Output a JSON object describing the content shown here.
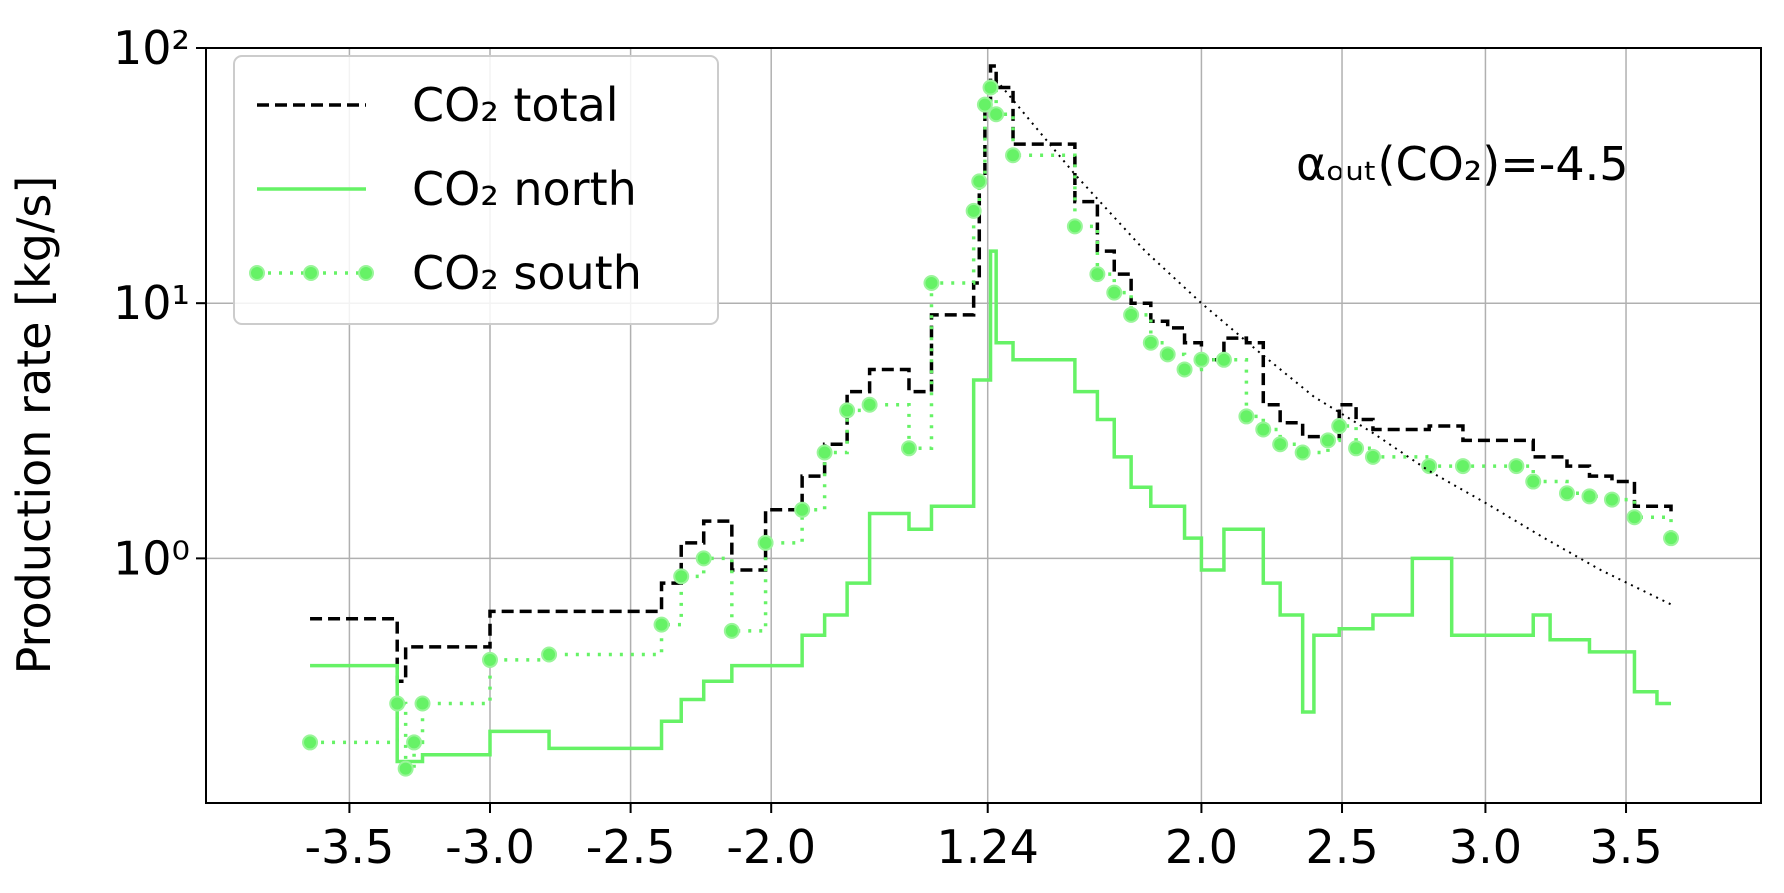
{
  "chart_data": {
    "type": "step",
    "ylabel": "Production rate [kg/s]",
    "annotation": "αₒᵤₜ(CO₂)=-4.5",
    "yscale": "log",
    "grid": true,
    "legend": "upper left",
    "xlim": [
      -4.01,
      1.52
    ],
    "ylim": [
      0.11,
      100
    ],
    "xticks": [
      {
        "value": -3.5,
        "label": "-3.5"
      },
      {
        "value": -3.0,
        "label": "-3.0"
      },
      {
        "value": -2.5,
        "label": "-2.5"
      },
      {
        "value": -2.0,
        "label": "-2.0"
      },
      {
        "value": -1.23,
        "label": "1.24"
      },
      {
        "value": -0.47,
        "label": "2.0"
      },
      {
        "value": 0.03,
        "label": "2.5"
      },
      {
        "value": 0.54,
        "label": "3.0"
      },
      {
        "value": 1.04,
        "label": "3.5"
      }
    ],
    "yticks": [
      {
        "value": 1,
        "label": "10⁰"
      },
      {
        "value": 10,
        "label": "10¹"
      },
      {
        "value": 100,
        "label": "10²"
      }
    ],
    "series": [
      {
        "name": "CO₂ total",
        "color": "#000000",
        "style": "dashed",
        "x": [
          -3.64,
          -3.33,
          -3.3,
          -3.0,
          -2.39,
          -2.32,
          -2.24,
          -2.14,
          -2.02,
          -1.89,
          -1.81,
          -1.73,
          -1.65,
          -1.51,
          -1.43,
          -1.28,
          -1.26,
          -1.24,
          -1.22,
          -1.2,
          -1.14,
          -0.92,
          -0.84,
          -0.78,
          -0.72,
          -0.65,
          -0.59,
          -0.53,
          -0.47,
          -0.39,
          -0.31,
          -0.25,
          -0.19,
          -0.11,
          -0.02,
          0.02,
          0.08,
          0.14,
          0.34,
          0.46,
          0.65,
          0.71,
          0.83,
          0.91,
          0.99,
          1.07,
          1.2
        ],
        "values": [
          0.58,
          0.33,
          0.45,
          0.62,
          0.8,
          1.15,
          1.4,
          0.9,
          1.55,
          2.1,
          2.8,
          4.5,
          5.5,
          4.5,
          9,
          12,
          30,
          60,
          85,
          70,
          42,
          25,
          16,
          13,
          10,
          8.5,
          8,
          7,
          6,
          7.3,
          7,
          4,
          3.4,
          3,
          2.9,
          4,
          3.5,
          3.2,
          3.3,
          2.9,
          2.9,
          2.5,
          2.3,
          2.1,
          2.0,
          1.6,
          1.5
        ]
      },
      {
        "name": "CO₂ north",
        "color": "#66f266",
        "style": "solid",
        "x": [
          -3.64,
          -3.33,
          -3.24,
          -3.0,
          -2.79,
          -2.39,
          -2.32,
          -2.24,
          -2.14,
          -1.89,
          -1.81,
          -1.73,
          -1.65,
          -1.51,
          -1.43,
          -1.28,
          -1.22,
          -1.2,
          -1.14,
          -0.92,
          -0.84,
          -0.78,
          -0.72,
          -0.65,
          -0.53,
          -0.47,
          -0.39,
          -0.25,
          -0.19,
          -0.11,
          -0.07,
          0.02,
          0.14,
          0.28,
          0.42,
          0.71,
          0.77,
          0.91,
          1.07,
          1.15,
          1.2
        ],
        "values": [
          0.38,
          0.16,
          0.17,
          0.21,
          0.18,
          0.23,
          0.28,
          0.33,
          0.38,
          0.5,
          0.6,
          0.8,
          1.5,
          1.3,
          1.6,
          5,
          16,
          7,
          6,
          4.5,
          3.5,
          2.5,
          1.9,
          1.6,
          1.2,
          0.9,
          1.3,
          0.8,
          0.6,
          0.25,
          0.5,
          0.53,
          0.6,
          1.0,
          0.5,
          0.6,
          0.48,
          0.43,
          0.3,
          0.27,
          0.27
        ]
      },
      {
        "name": "CO₂ south",
        "color": "#66f266",
        "style": "dotted",
        "marker": true,
        "x": [
          -3.64,
          -3.33,
          -3.3,
          -3.27,
          -3.24,
          -3.0,
          -2.79,
          -2.39,
          -2.32,
          -2.24,
          -2.14,
          -2.02,
          -1.89,
          -1.81,
          -1.73,
          -1.65,
          -1.51,
          -1.43,
          -1.28,
          -1.26,
          -1.24,
          -1.22,
          -1.2,
          -1.14,
          -0.92,
          -0.84,
          -0.78,
          -0.72,
          -0.65,
          -0.59,
          -0.53,
          -0.47,
          -0.39,
          -0.31,
          -0.25,
          -0.19,
          -0.11,
          -0.02,
          0.02,
          0.08,
          0.14,
          0.34,
          0.46,
          0.65,
          0.71,
          0.83,
          0.91,
          0.99,
          1.07,
          1.2
        ],
        "values": [
          0.19,
          0.27,
          0.15,
          0.19,
          0.27,
          0.4,
          0.42,
          0.55,
          0.85,
          1.0,
          0.52,
          1.15,
          1.55,
          2.6,
          3.8,
          4.0,
          2.7,
          12,
          23,
          30,
          60,
          70,
          55,
          38,
          20,
          13,
          11,
          9,
          7,
          6.3,
          5.5,
          6,
          6,
          3.6,
          3.2,
          2.8,
          2.6,
          2.9,
          3.3,
          2.7,
          2.5,
          2.3,
          2.3,
          2.3,
          2.0,
          1.8,
          1.75,
          1.7,
          1.45,
          1.2
        ]
      }
    ],
    "fit": {
      "color": "#000000",
      "style": "dotted",
      "x": [
        -1.2,
        -0.92,
        -0.67,
        -0.47,
        -0.27,
        -0.07,
        0.14,
        0.34,
        0.54,
        0.75,
        0.95,
        1.2
      ],
      "values": [
        75,
        32,
        16,
        10,
        6.5,
        4.3,
        3.1,
        2.2,
        1.65,
        1.2,
        0.9,
        0.66
      ]
    }
  }
}
